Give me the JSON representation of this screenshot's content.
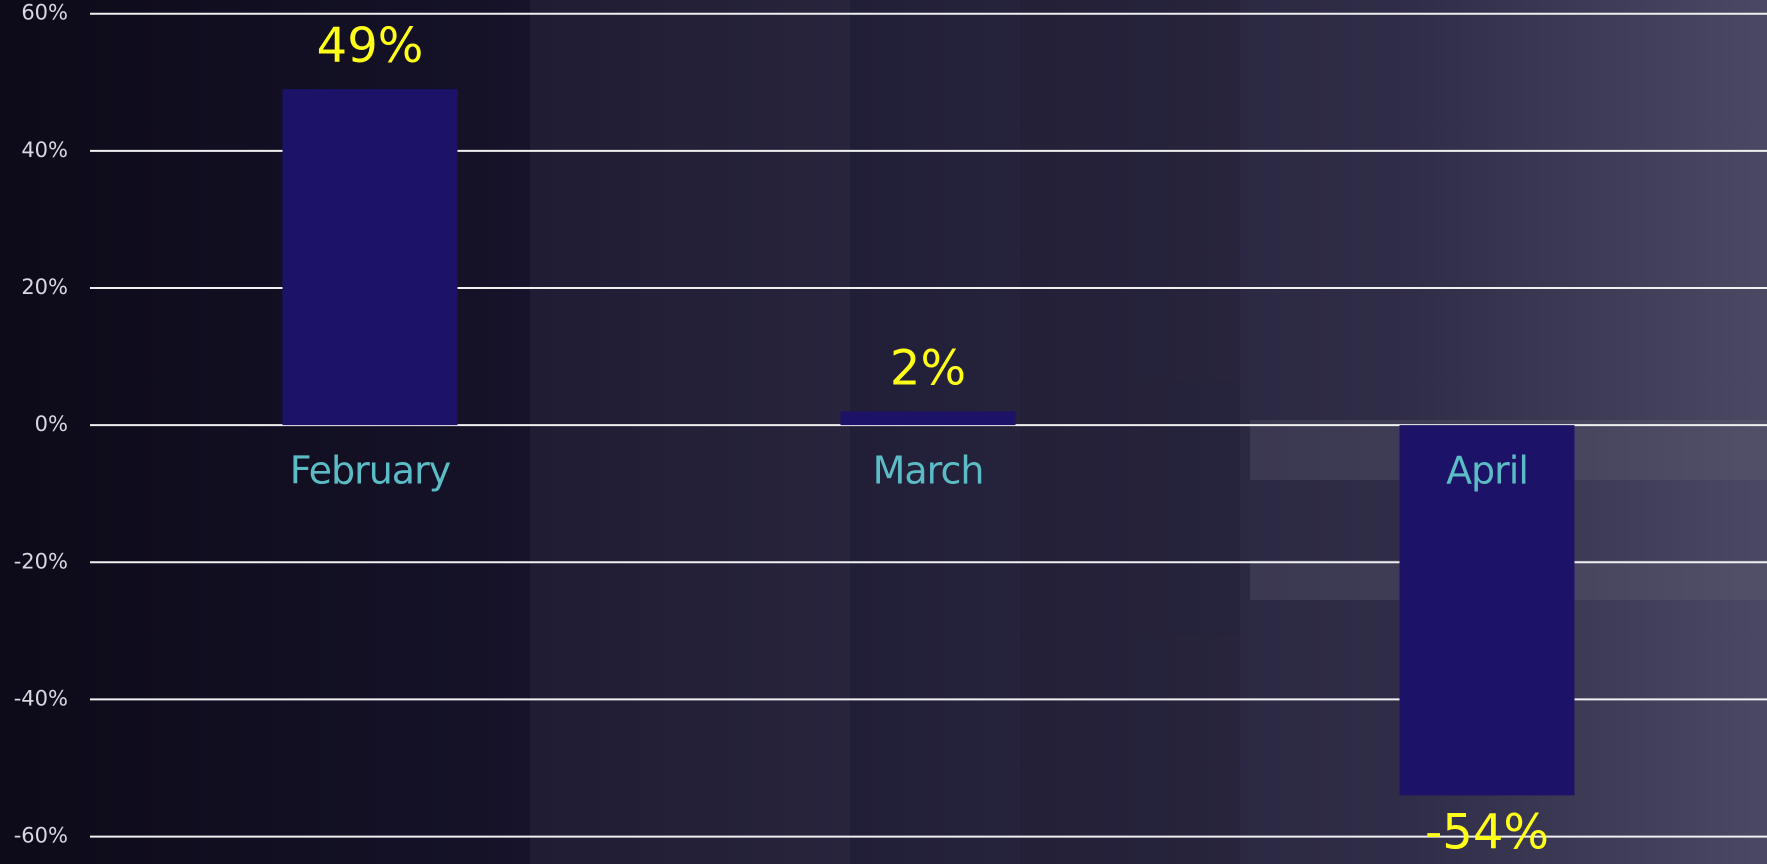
{
  "chart_data": {
    "type": "bar",
    "categories": [
      "February",
      "March",
      "April"
    ],
    "values": [
      49,
      2,
      -54
    ],
    "value_labels": [
      "49%",
      "2%",
      "-54%"
    ],
    "color": "#1c1268",
    "ylim": [
      -64,
      62
    ],
    "yticks": [
      {
        "value": -60,
        "label": "-60%"
      },
      {
        "value": -40,
        "label": "-40%"
      },
      {
        "value": -20,
        "label": "-20%"
      },
      {
        "value": 0,
        "label": "0%"
      },
      {
        "value": 20,
        "label": "20%"
      },
      {
        "value": 40,
        "label": "40%"
      },
      {
        "value": 60,
        "label": "60%"
      }
    ],
    "grid": true
  }
}
